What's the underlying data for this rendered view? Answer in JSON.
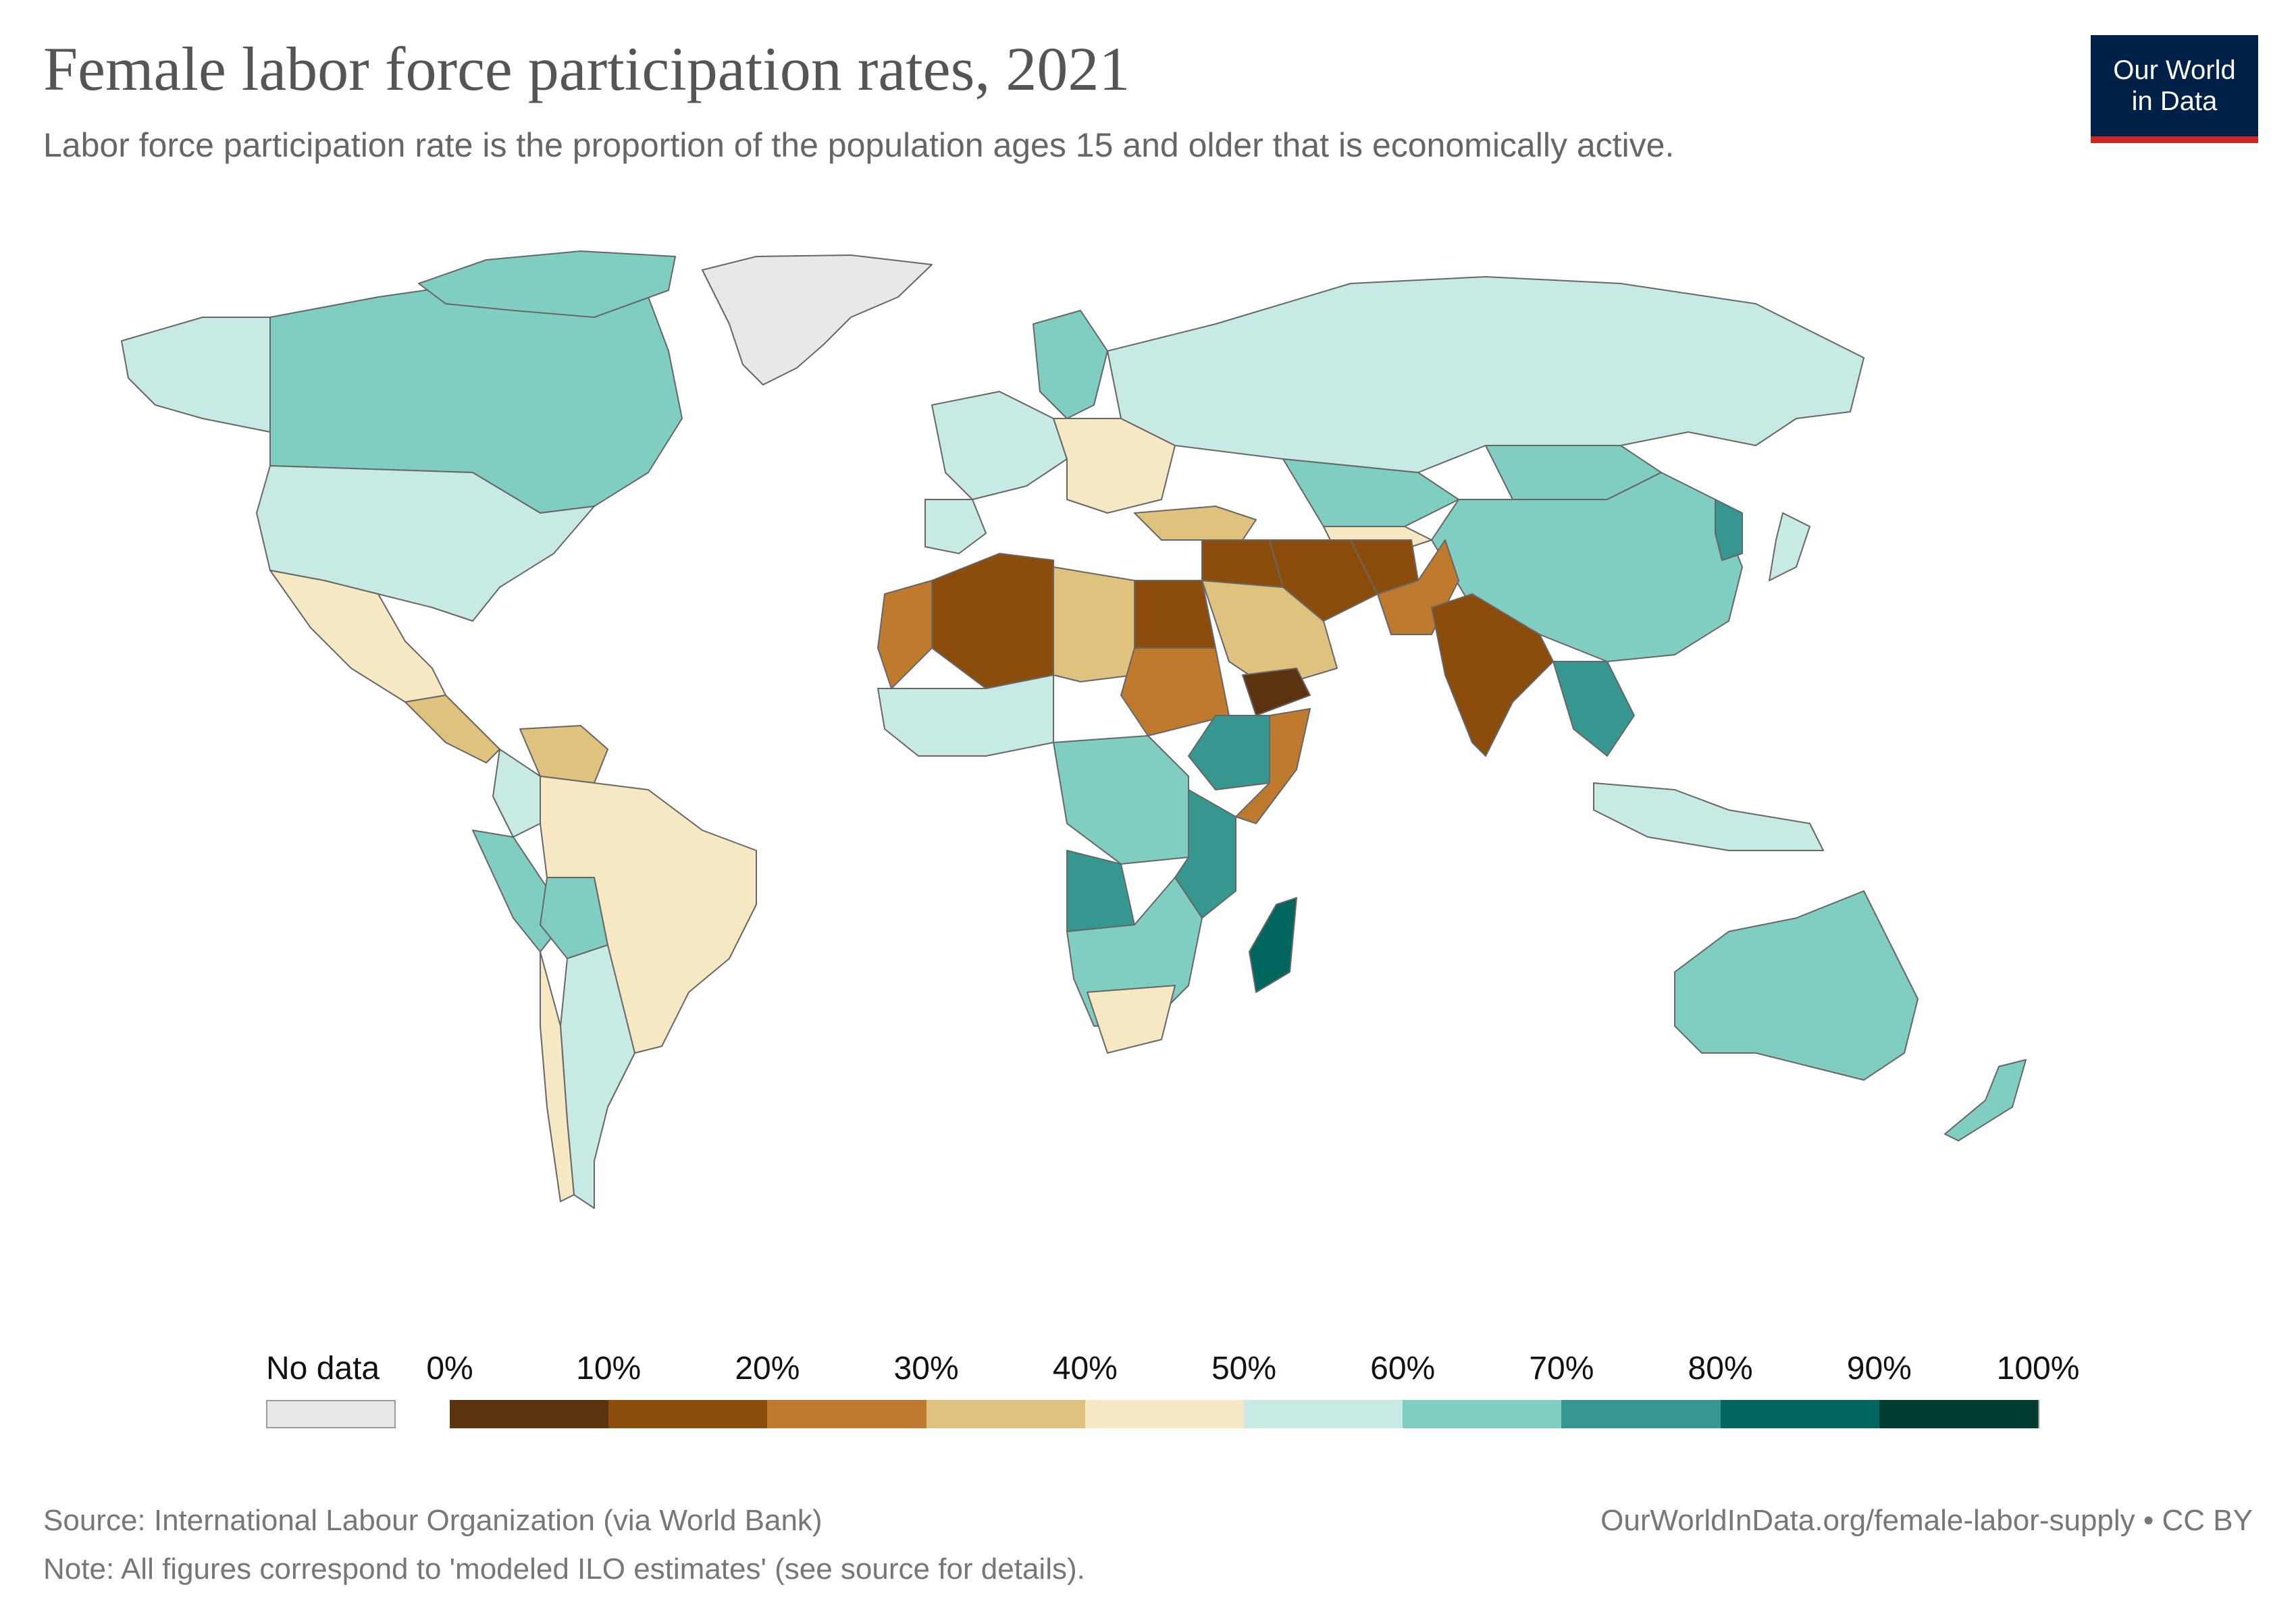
{
  "header": {
    "title": "Female labor force participation rates, 2021",
    "subtitle": "Labor force participation rate is the proportion of the population ages 15 and older that is economically active."
  },
  "logo": {
    "line1": "Our World",
    "line2": "in Data"
  },
  "legend": {
    "no_data_label": "No data",
    "tick_labels": [
      "0%",
      "10%",
      "20%",
      "30%",
      "40%",
      "50%",
      "60%",
      "70%",
      "80%",
      "90%",
      "100%"
    ],
    "colors": [
      "#5c3310",
      "#8c4d0c",
      "#bf7a2e",
      "#dfc27d",
      "#f6e8c3",
      "#c7eae5",
      "#80cdc1",
      "#35978f",
      "#01665e",
      "#003c30"
    ],
    "no_data_color": "#e8e8e8"
  },
  "map_data": {
    "type": "choropleth",
    "variable": "Female labor force participation rate (%)",
    "year": 2021,
    "regions": [
      {
        "name": "Greenland",
        "bin": "No data",
        "color": "#e8e8e8"
      },
      {
        "name": "Canada",
        "bin": "60-70%",
        "color": "#80cdc1"
      },
      {
        "name": "United States",
        "bin": "50-60%",
        "color": "#c7eae5"
      },
      {
        "name": "Mexico",
        "bin": "40-50%",
        "color": "#f6e8c3"
      },
      {
        "name": "Brazil",
        "bin": "40-50%",
        "color": "#f6e8c3"
      },
      {
        "name": "Venezuela",
        "bin": "30-40%",
        "color": "#dfc27d"
      },
      {
        "name": "Peru",
        "bin": "60-70%",
        "color": "#80cdc1"
      },
      {
        "name": "Argentina",
        "bin": "50-60%",
        "color": "#c7eae5"
      },
      {
        "name": "Russia",
        "bin": "50-60%",
        "color": "#c7eae5"
      },
      {
        "name": "China",
        "bin": "60-70%",
        "color": "#80cdc1"
      },
      {
        "name": "Kazakhstan",
        "bin": "60-70%",
        "color": "#80cdc1"
      },
      {
        "name": "Algeria",
        "bin": "10-20%",
        "color": "#8c4d0c"
      },
      {
        "name": "Egypt",
        "bin": "10-20%",
        "color": "#8c4d0c"
      },
      {
        "name": "Libya",
        "bin": "30-40%",
        "color": "#dfc27d"
      },
      {
        "name": "Saudi Arabia",
        "bin": "30-40%",
        "color": "#dfc27d"
      },
      {
        "name": "Iran",
        "bin": "10-20%",
        "color": "#8c4d0c"
      },
      {
        "name": "Iraq",
        "bin": "10-20%",
        "color": "#8c4d0c"
      },
      {
        "name": "Afghanistan",
        "bin": "10-20%",
        "color": "#8c4d0c"
      },
      {
        "name": "Pakistan",
        "bin": "20-30%",
        "color": "#bf7a2e"
      },
      {
        "name": "India",
        "bin": "10-20%",
        "color": "#8c4d0c"
      },
      {
        "name": "Yemen",
        "bin": "0-10%",
        "color": "#5c3310"
      },
      {
        "name": "Sudan",
        "bin": "20-30%",
        "color": "#bf7a2e"
      },
      {
        "name": "Ethiopia",
        "bin": "70-80%",
        "color": "#35978f"
      },
      {
        "name": "Somalia",
        "bin": "20-30%",
        "color": "#bf7a2e"
      },
      {
        "name": "Madagascar",
        "bin": "80-90%",
        "color": "#01665e"
      },
      {
        "name": "Angola",
        "bin": "70-80%",
        "color": "#35978f"
      },
      {
        "name": "South Africa",
        "bin": "40-50%",
        "color": "#f6e8c3"
      },
      {
        "name": "Australia",
        "bin": "60-70%",
        "color": "#80cdc1"
      },
      {
        "name": "New Zealand",
        "bin": "60-70%",
        "color": "#80cdc1"
      },
      {
        "name": "Turkey",
        "bin": "30-40%",
        "color": "#dfc27d"
      },
      {
        "name": "Indonesia",
        "bin": "50-60%",
        "color": "#c7eae5"
      },
      {
        "name": "Nigeria",
        "bin": "40-50%",
        "color": "#f6e8c3"
      }
    ]
  },
  "footer": {
    "source": "Source: International Labour Organization (via World Bank)",
    "note": "Note: All figures correspond to 'modeled ILO estimates' (see source for details).",
    "link": "OurWorldInData.org/female-labor-supply • CC BY"
  }
}
